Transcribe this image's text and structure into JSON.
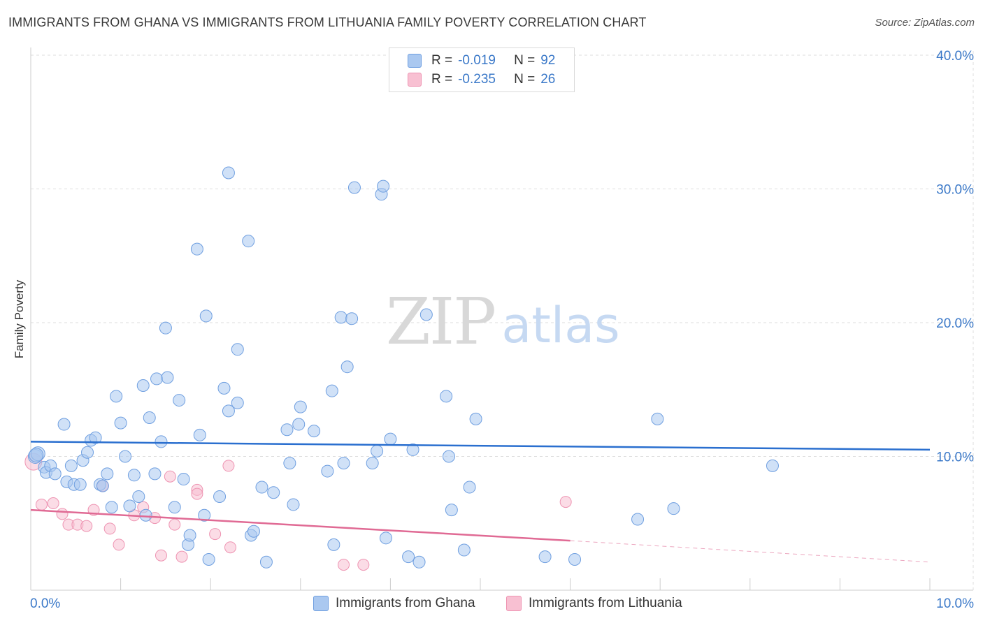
{
  "title": "IMMIGRANTS FROM GHANA VS IMMIGRANTS FROM LITHUANIA FAMILY POVERTY CORRELATION CHART",
  "source": "Source: ZipAtlas.com",
  "watermark": {
    "zip": "ZIP",
    "atlas": "atlas"
  },
  "legend": {
    "r_label": "R =",
    "n_label": "N =",
    "entries": [
      {
        "r": "-0.019",
        "n": "92"
      },
      {
        "r": "-0.235",
        "n": "26"
      }
    ]
  },
  "colors": {
    "ghana_fill": "#aac8f0",
    "ghana_stroke": "#6f9fe0",
    "ghana_line": "#2a6fcf",
    "lithuania_fill": "#f8c0d2",
    "lithuania_stroke": "#ee94b2",
    "lithuania_line": "#e06a94",
    "axis_text": "#3a78c8",
    "grid": "#dddddd"
  },
  "chart_data": {
    "type": "scatter",
    "title": "IMMIGRANTS FROM GHANA VS IMMIGRANTS FROM LITHUANIA FAMILY POVERTY CORRELATION CHART",
    "xlabel": "",
    "ylabel": "Family Poverty",
    "xlim": [
      0,
      10
    ],
    "ylim": [
      0,
      40
    ],
    "x_tick_labels": [
      "0.0%",
      "10.0%"
    ],
    "y_ticks": [
      10,
      20,
      30,
      40
    ],
    "y_tick_labels": [
      "10.0%",
      "20.0%",
      "30.0%",
      "40.0%"
    ],
    "grid": true,
    "series": [
      {
        "name": "Immigrants from Ghana",
        "r": -0.019,
        "n": 92,
        "trend": {
          "x": [
            0,
            10
          ],
          "y": [
            11.1,
            10.5
          ]
        },
        "points": [
          [
            0.05,
            10.0
          ],
          [
            0.08,
            10.2
          ],
          [
            0.15,
            9.2
          ],
          [
            0.17,
            8.8
          ],
          [
            0.22,
            9.3
          ],
          [
            0.27,
            8.7
          ],
          [
            0.37,
            12.4
          ],
          [
            0.4,
            8.1
          ],
          [
            0.45,
            9.3
          ],
          [
            0.48,
            7.9
          ],
          [
            0.55,
            7.9
          ],
          [
            0.58,
            9.7
          ],
          [
            0.63,
            10.3
          ],
          [
            0.67,
            11.2
          ],
          [
            0.72,
            11.4
          ],
          [
            0.77,
            7.9
          ],
          [
            0.8,
            7.8
          ],
          [
            0.85,
            8.7
          ],
          [
            0.9,
            6.2
          ],
          [
            0.95,
            14.5
          ],
          [
            1.0,
            12.5
          ],
          [
            1.05,
            10.0
          ],
          [
            1.1,
            6.3
          ],
          [
            1.15,
            8.6
          ],
          [
            1.2,
            7.0
          ],
          [
            1.25,
            15.3
          ],
          [
            1.28,
            5.6
          ],
          [
            1.32,
            12.9
          ],
          [
            1.38,
            8.7
          ],
          [
            1.4,
            15.8
          ],
          [
            1.45,
            11.1
          ],
          [
            1.5,
            19.6
          ],
          [
            1.52,
            15.9
          ],
          [
            1.6,
            6.2
          ],
          [
            1.65,
            14.2
          ],
          [
            1.7,
            8.3
          ],
          [
            1.75,
            3.4
          ],
          [
            1.77,
            4.1
          ],
          [
            1.85,
            25.5
          ],
          [
            1.88,
            11.6
          ],
          [
            1.93,
            5.6
          ],
          [
            1.95,
            20.5
          ],
          [
            1.98,
            2.3
          ],
          [
            2.1,
            7.0
          ],
          [
            2.15,
            15.1
          ],
          [
            2.2,
            31.2
          ],
          [
            2.2,
            13.4
          ],
          [
            2.3,
            14.0
          ],
          [
            2.3,
            18.0
          ],
          [
            2.42,
            26.1
          ],
          [
            2.45,
            4.1
          ],
          [
            2.48,
            4.4
          ],
          [
            2.57,
            7.7
          ],
          [
            2.62,
            2.1
          ],
          [
            2.7,
            7.3
          ],
          [
            2.85,
            12.0
          ],
          [
            2.88,
            9.5
          ],
          [
            2.92,
            6.4
          ],
          [
            2.98,
            12.4
          ],
          [
            3.0,
            13.7
          ],
          [
            3.15,
            11.9
          ],
          [
            3.3,
            8.9
          ],
          [
            3.35,
            14.9
          ],
          [
            3.37,
            3.4
          ],
          [
            3.45,
            20.4
          ],
          [
            3.48,
            9.5
          ],
          [
            3.52,
            16.7
          ],
          [
            3.57,
            20.3
          ],
          [
            3.6,
            30.1
          ],
          [
            3.8,
            9.5
          ],
          [
            3.85,
            10.4
          ],
          [
            3.9,
            29.6
          ],
          [
            3.92,
            30.2
          ],
          [
            3.95,
            3.9
          ],
          [
            4.0,
            11.3
          ],
          [
            4.2,
            2.5
          ],
          [
            4.25,
            10.5
          ],
          [
            4.32,
            2.1
          ],
          [
            4.4,
            20.6
          ],
          [
            4.62,
            14.5
          ],
          [
            4.65,
            10.0
          ],
          [
            4.68,
            6.0
          ],
          [
            4.82,
            3.0
          ],
          [
            4.88,
            7.7
          ],
          [
            4.95,
            12.8
          ],
          [
            5.72,
            2.5
          ],
          [
            6.05,
            2.3
          ],
          [
            6.75,
            5.3
          ],
          [
            6.97,
            12.8
          ],
          [
            7.15,
            6.1
          ],
          [
            8.25,
            9.3
          ],
          [
            0.06,
            10.1
          ]
        ]
      },
      {
        "name": "Immigrants from Lithuania",
        "r": -0.235,
        "n": 26,
        "trend": {
          "x": [
            0,
            6
          ],
          "y": [
            6.0,
            3.7
          ]
        },
        "trend_dashed": {
          "x": [
            6,
            10
          ],
          "y": [
            3.7,
            2.1
          ]
        },
        "points": [
          [
            0.03,
            9.6
          ],
          [
            0.12,
            6.4
          ],
          [
            0.25,
            6.5
          ],
          [
            0.35,
            5.7
          ],
          [
            0.42,
            4.9
          ],
          [
            0.52,
            4.9
          ],
          [
            0.62,
            4.8
          ],
          [
            0.7,
            6.0
          ],
          [
            0.8,
            7.8
          ],
          [
            0.88,
            4.6
          ],
          [
            0.98,
            3.4
          ],
          [
            1.15,
            5.6
          ],
          [
            1.25,
            6.2
          ],
          [
            1.38,
            5.4
          ],
          [
            1.45,
            2.6
          ],
          [
            1.55,
            8.5
          ],
          [
            1.6,
            4.9
          ],
          [
            1.68,
            2.5
          ],
          [
            1.85,
            7.5
          ],
          [
            1.85,
            7.2
          ],
          [
            2.05,
            4.2
          ],
          [
            2.22,
            3.2
          ],
          [
            2.2,
            9.3
          ],
          [
            3.48,
            1.9
          ],
          [
            3.7,
            1.9
          ],
          [
            5.95,
            6.6
          ]
        ]
      }
    ]
  }
}
